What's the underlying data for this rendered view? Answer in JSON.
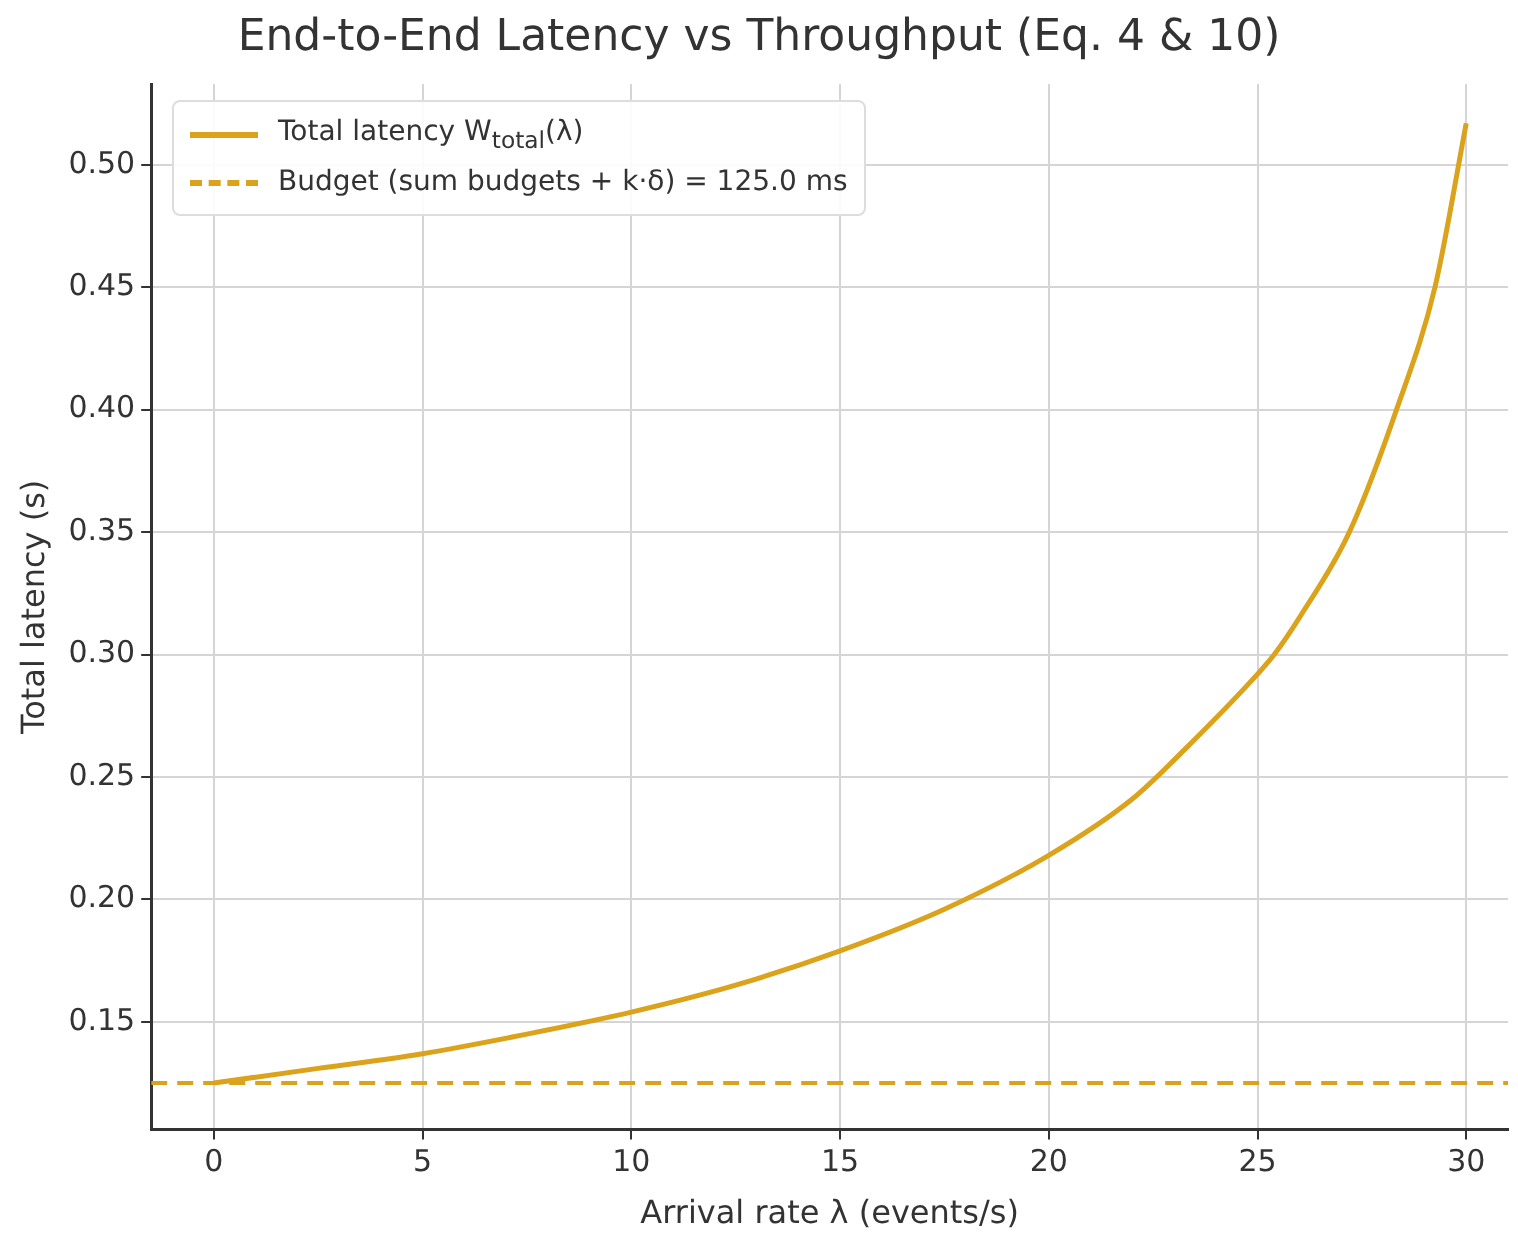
{
  "chart_data": {
    "type": "line",
    "title": "End-to-End Latency vs Throughput (Eq. 4 & 10)",
    "xlabel": "Arrival rate λ (events/s)",
    "ylabel": "Total latency (s)",
    "series": [
      {
        "name": "Total latency W$_{total}$(λ)",
        "color": "#dba21c",
        "x": [
          0,
          2.5,
          5,
          7.5,
          10,
          12.5,
          15,
          17.5,
          20,
          22,
          23.3,
          25,
          25.4,
          26,
          27.2,
          28.33,
          29.25,
          30
        ],
        "values": [
          0.125,
          0.131,
          0.137,
          0.145,
          0.154,
          0.165,
          0.179,
          0.196,
          0.218,
          0.241,
          0.262,
          0.292,
          0.3,
          0.315,
          0.35,
          0.4,
          0.45,
          0.517
        ]
      }
    ],
    "ref_lines": [
      {
        "axis": "y",
        "value": 0.125,
        "label": "Budget (sum budgets + k·δ) = 125.0 ms",
        "color": "#dba21c",
        "line_style": "dashed"
      }
    ],
    "xlim": [
      -1.5,
      31
    ],
    "ylim": [
      0.106,
      0.533
    ],
    "xticks": [
      0,
      5,
      10,
      15,
      20,
      25,
      30
    ],
    "yticks": [
      {
        "value": 0.15,
        "label": "0.15"
      },
      {
        "value": 0.2,
        "label": "0.20"
      },
      {
        "value": 0.25,
        "label": "0.25"
      },
      {
        "value": 0.3,
        "label": "0.30"
      },
      {
        "value": 0.35,
        "label": "0.35"
      },
      {
        "value": 0.4,
        "label": "0.40"
      },
      {
        "value": 0.45,
        "label": "0.45"
      },
      {
        "value": 0.5,
        "label": "0.50"
      }
    ],
    "grid": true,
    "legend": "top left",
    "line_style": "solid",
    "marker": "none"
  }
}
